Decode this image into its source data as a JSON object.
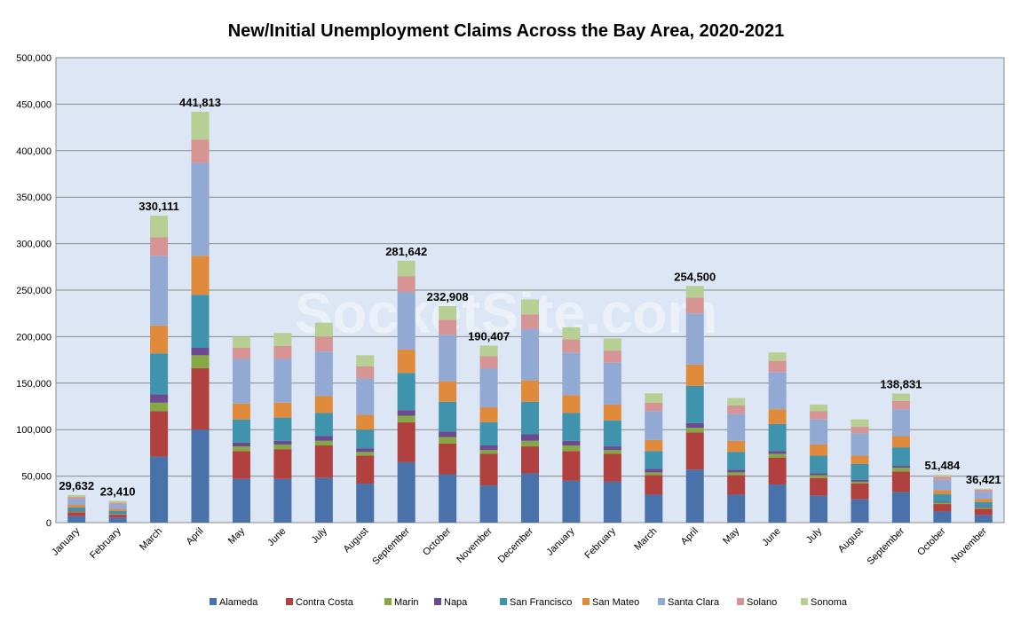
{
  "chart_data": {
    "type": "bar",
    "stacked": true,
    "title": "New/Initial Unemployment Claims Across the Bay Area, 2020-2021",
    "watermark": "SocketSite.com",
    "ylim": [
      0,
      500000
    ],
    "yticks": [
      "0",
      "50,000",
      "100,000",
      "150,000",
      "200,000",
      "250,000",
      "300,000",
      "350,000",
      "400,000",
      "450,000",
      "500,000"
    ],
    "ytick_values": [
      0,
      50000,
      100000,
      150000,
      200000,
      250000,
      300000,
      350000,
      400000,
      450000,
      500000
    ],
    "grid": true,
    "legend_position": "bottom",
    "categories": [
      "January",
      "February",
      "March",
      "April",
      "May",
      "June",
      "July",
      "August",
      "September",
      "October",
      "November",
      "December",
      "January",
      "February",
      "March",
      "April",
      "May",
      "June",
      "July",
      "August",
      "September",
      "October",
      "November"
    ],
    "totals": [
      29632,
      23410,
      330111,
      441813,
      200000,
      204000,
      215000,
      180000,
      281642,
      232908,
      190407,
      240000,
      210000,
      198000,
      139000,
      254500,
      134000,
      183000,
      127000,
      111000,
      138831,
      51484,
      36421
    ],
    "total_labels": [
      "29,632",
      "23,410",
      "330,111",
      "441,813",
      "",
      "",
      "",
      "",
      "281,642",
      "232,908",
      "190,407",
      "",
      "",
      "",
      "",
      "254,500",
      "",
      "",
      "",
      "",
      "138,831",
      "51,484",
      "36,421"
    ],
    "series": [
      {
        "name": "Alameda",
        "color": "#4a72aa",
        "values": [
          7000,
          5500,
          71000,
          100000,
          47000,
          47000,
          48000,
          42000,
          65000,
          52000,
          40000,
          53000,
          45000,
          44000,
          30000,
          57000,
          30000,
          41000,
          29000,
          25000,
          33000,
          12000,
          8000
        ]
      },
      {
        "name": "Contra Costa",
        "color": "#b0413e",
        "values": [
          4000,
          3000,
          49000,
          66000,
          30000,
          32000,
          35000,
          30000,
          43000,
          33000,
          34000,
          29000,
          32000,
          30000,
          21000,
          40000,
          21000,
          29000,
          19000,
          17000,
          22000,
          8000,
          7000
        ]
      },
      {
        "name": "Marin",
        "color": "#85a844",
        "values": [
          1000,
          800,
          9000,
          14000,
          5000,
          5000,
          5000,
          4000,
          7000,
          7000,
          4000,
          6000,
          6000,
          4000,
          3000,
          5000,
          3000,
          4000,
          3000,
          2000,
          4000,
          1500,
          1200
        ]
      },
      {
        "name": "Napa",
        "color": "#6b4a8f",
        "values": [
          800,
          600,
          9000,
          8000,
          4000,
          4000,
          5000,
          4000,
          6000,
          6000,
          5000,
          7000,
          5000,
          4000,
          4000,
          5000,
          3000,
          3000,
          2000,
          2000,
          2000,
          1000,
          800
        ]
      },
      {
        "name": "San Francisco",
        "color": "#3f93ad",
        "values": [
          3500,
          2800,
          44000,
          57000,
          25000,
          25000,
          25000,
          20000,
          40000,
          32000,
          25000,
          35000,
          30000,
          28000,
          19000,
          40000,
          19000,
          29000,
          19000,
          17000,
          20000,
          8000,
          5000
        ]
      },
      {
        "name": "San Mateo",
        "color": "#e08a3c",
        "values": [
          2800,
          2200,
          30000,
          42000,
          17000,
          16000,
          18000,
          16000,
          25000,
          22000,
          16000,
          23000,
          19000,
          17000,
          12000,
          23000,
          12000,
          16000,
          12000,
          9000,
          12000,
          4500,
          3500
        ]
      },
      {
        "name": "Santa Clara",
        "color": "#92a9d4",
        "values": [
          6500,
          5200,
          75000,
          100000,
          48000,
          47000,
          48000,
          39000,
          62000,
          50000,
          42000,
          55000,
          46000,
          45000,
          31000,
          55000,
          29000,
          40000,
          27000,
          24000,
          29000,
          11000,
          7500
        ]
      },
      {
        "name": "Solano",
        "color": "#d69594",
        "values": [
          2000,
          1500,
          20000,
          25000,
          12000,
          14000,
          16000,
          13000,
          17000,
          16000,
          13000,
          16000,
          14000,
          13000,
          9000,
          17000,
          9000,
          12000,
          9000,
          7000,
          9000,
          3500,
          2500
        ]
      },
      {
        "name": "Sonoma",
        "color": "#b8cf93",
        "values": [
          2032,
          1810,
          23111,
          29813,
          12000,
          14000,
          15000,
          12000,
          16642,
          14908,
          11407,
          16000,
          13000,
          13000,
          10000,
          12500,
          8000,
          9000,
          7000,
          8000,
          7831,
          1984,
          921
        ]
      }
    ]
  }
}
